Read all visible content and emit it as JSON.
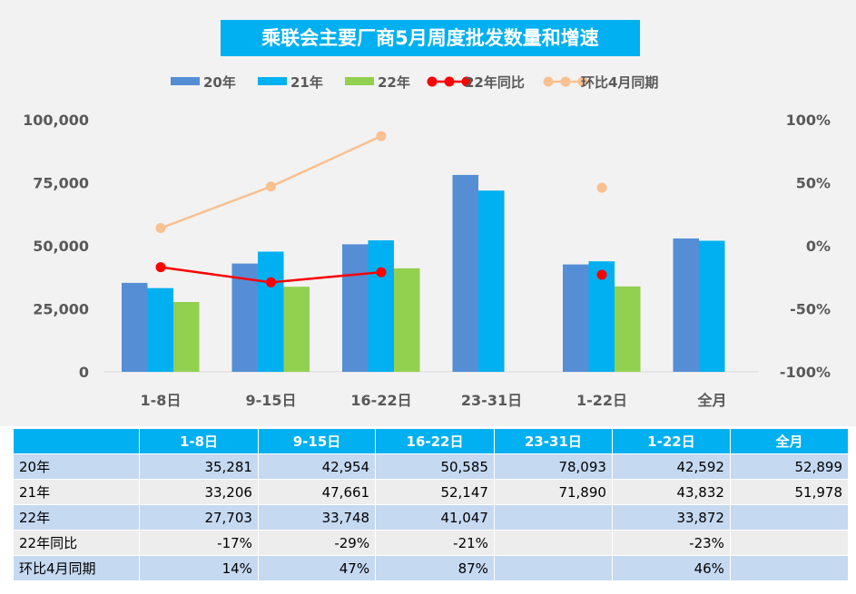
{
  "chart_data": {
    "type": "bar",
    "title": "乘联会主要厂商5月周度批发数量和增速",
    "categories": [
      "1-8日",
      "9-15日",
      "16-22日",
      "23-31日",
      "1-22日",
      "全月"
    ],
    "series": [
      {
        "name": "20年",
        "kind": "bar",
        "axis": "left",
        "color": "#558ED5",
        "values": [
          35281,
          42954,
          50585,
          78093,
          42592,
          52899
        ]
      },
      {
        "name": "21年",
        "kind": "bar",
        "axis": "left",
        "color": "#00B0F0",
        "values": [
          33206,
          47661,
          52147,
          71890,
          43832,
          51978
        ]
      },
      {
        "name": "22年",
        "kind": "bar",
        "axis": "left",
        "color": "#92D050",
        "values": [
          27703,
          33748,
          41047,
          null,
          33872,
          null
        ]
      },
      {
        "name": "22年同比",
        "kind": "line",
        "axis": "right",
        "color": "#FF0000",
        "values": [
          -17,
          -29,
          -21,
          null,
          -23,
          null
        ]
      },
      {
        "name": "环比4月同期",
        "kind": "line",
        "axis": "right",
        "color": "#FAC090",
        "values": [
          14,
          47,
          87,
          null,
          46,
          null
        ]
      }
    ],
    "left_axis": {
      "ylim": [
        0,
        100000
      ],
      "ticks": [
        "0",
        "25,000",
        "50,000",
        "75,000",
        "100,000"
      ]
    },
    "right_axis": {
      "ylim": [
        -100,
        100
      ],
      "ticks": [
        "-100%",
        "-50%",
        "0%",
        "50%",
        "100%"
      ]
    },
    "legend_position": "top",
    "grid": false
  },
  "table": {
    "headers": [
      "",
      "1-8日",
      "9-15日",
      "16-22日",
      "23-31日",
      "1-22日",
      "全月"
    ],
    "rows": [
      [
        "20年",
        "35,281",
        "42,954",
        "50,585",
        "78,093",
        "42,592",
        "52,899"
      ],
      [
        "21年",
        "33,206",
        "47,661",
        "52,147",
        "71,890",
        "43,832",
        "51,978"
      ],
      [
        "22年",
        "27,703",
        "33,748",
        "41,047",
        "",
        "33,872",
        ""
      ],
      [
        "22年同比",
        "-17%",
        "-29%",
        "-21%",
        "",
        "-23%",
        ""
      ],
      [
        "环比4月同期",
        "14%",
        "47%",
        "87%",
        "",
        "46%",
        ""
      ]
    ]
  }
}
